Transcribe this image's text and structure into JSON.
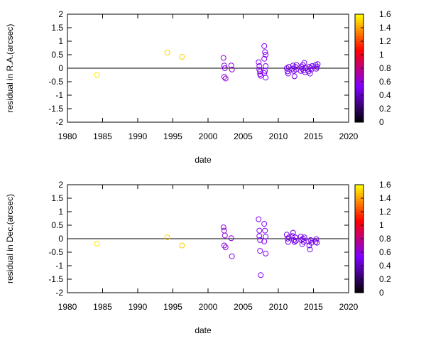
{
  "colorbar": {
    "ticks": [
      "1.6",
      "1.4",
      "1.2",
      "1",
      "0.8",
      "0.6",
      "0.4",
      "0.2",
      "0"
    ],
    "range": [
      0,
      1.6
    ]
  },
  "chart_data": [
    {
      "type": "scatter",
      "xlabel": "date",
      "ylabel": "residual in R.A.(arcsec)",
      "xlim": [
        1980,
        2020
      ],
      "ylim": [
        -2,
        2
      ],
      "xticks": [
        "1980",
        "1985",
        "1990",
        "1995",
        "2000",
        "2005",
        "2010",
        "2015",
        "2020"
      ],
      "yticks": [
        "2",
        "1.5",
        "1",
        "0.5",
        "0",
        "-0.5",
        "-1",
        "-1.5",
        "-2"
      ],
      "zero_line": true,
      "marker": "open-circle",
      "color_scale": [
        "#000000",
        "#7f00ff",
        "#ff0000",
        "#ffff00"
      ],
      "points": [
        {
          "x": 1984.2,
          "y": -0.25,
          "c": 1.55
        },
        {
          "x": 1994.2,
          "y": 0.58,
          "c": 1.5
        },
        {
          "x": 1996.3,
          "y": 0.42,
          "c": 1.5
        },
        {
          "x": 2002.2,
          "y": 0.38,
          "c": 0.6
        },
        {
          "x": 2002.3,
          "y": 0.1,
          "c": 0.6
        },
        {
          "x": 2002.4,
          "y": 0.0,
          "c": 0.6
        },
        {
          "x": 2002.3,
          "y": -0.32,
          "c": 0.6
        },
        {
          "x": 2002.5,
          "y": -0.38,
          "c": 0.6
        },
        {
          "x": 2003.3,
          "y": 0.1,
          "c": 0.6
        },
        {
          "x": 2003.4,
          "y": -0.05,
          "c": 0.6
        },
        {
          "x": 2007.2,
          "y": 0.22,
          "c": 0.55
        },
        {
          "x": 2007.3,
          "y": 0.08,
          "c": 0.55
        },
        {
          "x": 2007.3,
          "y": -0.05,
          "c": 0.55
        },
        {
          "x": 2007.4,
          "y": -0.12,
          "c": 0.55
        },
        {
          "x": 2007.4,
          "y": -0.22,
          "c": 0.55
        },
        {
          "x": 2007.5,
          "y": -0.28,
          "c": 0.55
        },
        {
          "x": 2008.0,
          "y": 0.82,
          "c": 0.55
        },
        {
          "x": 2008.1,
          "y": 0.6,
          "c": 0.55
        },
        {
          "x": 2008.2,
          "y": 0.5,
          "c": 0.55
        },
        {
          "x": 2008.0,
          "y": 0.35,
          "c": 0.55
        },
        {
          "x": 2008.2,
          "y": 0.08,
          "c": 0.55
        },
        {
          "x": 2008.1,
          "y": -0.1,
          "c": 0.55
        },
        {
          "x": 2008.0,
          "y": -0.18,
          "c": 0.55
        },
        {
          "x": 2008.2,
          "y": -0.35,
          "c": 0.55
        },
        {
          "x": 2011.2,
          "y": 0.0,
          "c": 0.5
        },
        {
          "x": 2011.3,
          "y": -0.12,
          "c": 0.5
        },
        {
          "x": 2011.4,
          "y": -0.2,
          "c": 0.5
        },
        {
          "x": 2011.5,
          "y": 0.05,
          "c": 0.5
        },
        {
          "x": 2012.0,
          "y": -0.02,
          "c": 0.5
        },
        {
          "x": 2012.1,
          "y": 0.1,
          "c": 0.5
        },
        {
          "x": 2012.2,
          "y": -0.1,
          "c": 0.5
        },
        {
          "x": 2012.3,
          "y": -0.3,
          "c": 0.5
        },
        {
          "x": 2012.4,
          "y": 0.05,
          "c": 0.5
        },
        {
          "x": 2012.5,
          "y": -0.05,
          "c": 0.5
        },
        {
          "x": 2012.6,
          "y": 0.12,
          "c": 0.5
        },
        {
          "x": 2013.2,
          "y": -0.1,
          "c": 0.5
        },
        {
          "x": 2013.3,
          "y": 0.05,
          "c": 0.5
        },
        {
          "x": 2013.4,
          "y": -0.02,
          "c": 0.5
        },
        {
          "x": 2013.5,
          "y": 0.12,
          "c": 0.5
        },
        {
          "x": 2013.6,
          "y": -0.08,
          "c": 0.5
        },
        {
          "x": 2013.7,
          "y": 0.2,
          "c": 0.5
        },
        {
          "x": 2013.8,
          "y": -0.15,
          "c": 0.5
        },
        {
          "x": 2013.9,
          "y": 0.0,
          "c": 0.5
        },
        {
          "x": 2014.3,
          "y": -0.12,
          "c": 0.5
        },
        {
          "x": 2014.4,
          "y": 0.05,
          "c": 0.5
        },
        {
          "x": 2014.5,
          "y": -0.2,
          "c": 0.5
        },
        {
          "x": 2014.6,
          "y": 0.0,
          "c": 0.5
        },
        {
          "x": 2014.7,
          "y": -0.05,
          "c": 0.5
        },
        {
          "x": 2014.8,
          "y": 0.08,
          "c": 0.5
        },
        {
          "x": 2015.3,
          "y": 0.12,
          "c": 0.5
        },
        {
          "x": 2015.4,
          "y": -0.02,
          "c": 0.5
        },
        {
          "x": 2015.5,
          "y": 0.05,
          "c": 0.5
        },
        {
          "x": 2015.6,
          "y": 0.15,
          "c": 0.5
        }
      ]
    },
    {
      "type": "scatter",
      "xlabel": "date",
      "ylabel": "residual in Dec.(arcsec)",
      "xlim": [
        1980,
        2020
      ],
      "ylim": [
        -2,
        2
      ],
      "xticks": [
        "1980",
        "1985",
        "1990",
        "1995",
        "2000",
        "2005",
        "2010",
        "2015",
        "2020"
      ],
      "yticks": [
        "2",
        "1.5",
        "1",
        "0.5",
        "0",
        "-0.5",
        "-1",
        "-1.5",
        "-2"
      ],
      "zero_line": true,
      "marker": "open-circle",
      "color_scale": [
        "#000000",
        "#7f00ff",
        "#ff0000",
        "#ffff00"
      ],
      "points": [
        {
          "x": 1984.2,
          "y": -0.18,
          "c": 1.55
        },
        {
          "x": 1994.2,
          "y": 0.05,
          "c": 1.5
        },
        {
          "x": 1996.3,
          "y": -0.25,
          "c": 1.5
        },
        {
          "x": 2002.2,
          "y": 0.42,
          "c": 0.6
        },
        {
          "x": 2002.3,
          "y": 0.3,
          "c": 0.6
        },
        {
          "x": 2002.4,
          "y": 0.12,
          "c": 0.6
        },
        {
          "x": 2002.3,
          "y": -0.25,
          "c": 0.6
        },
        {
          "x": 2002.5,
          "y": -0.32,
          "c": 0.6
        },
        {
          "x": 2003.3,
          "y": 0.02,
          "c": 0.6
        },
        {
          "x": 2003.4,
          "y": -0.65,
          "c": 0.6
        },
        {
          "x": 2007.2,
          "y": 0.72,
          "c": 0.55
        },
        {
          "x": 2007.3,
          "y": 0.3,
          "c": 0.55
        },
        {
          "x": 2007.3,
          "y": 0.1,
          "c": 0.55
        },
        {
          "x": 2007.4,
          "y": -0.05,
          "c": 0.55
        },
        {
          "x": 2007.4,
          "y": -0.45,
          "c": 0.55
        },
        {
          "x": 2007.5,
          "y": -1.35,
          "c": 0.55
        },
        {
          "x": 2008.0,
          "y": 0.55,
          "c": 0.55
        },
        {
          "x": 2008.1,
          "y": 0.3,
          "c": 0.55
        },
        {
          "x": 2008.2,
          "y": 0.08,
          "c": 0.55
        },
        {
          "x": 2008.0,
          "y": -0.1,
          "c": 0.55
        },
        {
          "x": 2008.2,
          "y": -0.55,
          "c": 0.55
        },
        {
          "x": 2011.2,
          "y": 0.15,
          "c": 0.5
        },
        {
          "x": 2011.3,
          "y": 0.0,
          "c": 0.5
        },
        {
          "x": 2011.4,
          "y": -0.12,
          "c": 0.5
        },
        {
          "x": 2011.5,
          "y": 0.05,
          "c": 0.5
        },
        {
          "x": 2012.0,
          "y": 0.1,
          "c": 0.5
        },
        {
          "x": 2012.1,
          "y": 0.22,
          "c": 0.5
        },
        {
          "x": 2012.2,
          "y": -0.05,
          "c": 0.5
        },
        {
          "x": 2012.3,
          "y": -0.12,
          "c": 0.5
        },
        {
          "x": 2012.4,
          "y": 0.05,
          "c": 0.5
        },
        {
          "x": 2012.5,
          "y": -0.08,
          "c": 0.5
        },
        {
          "x": 2013.2,
          "y": 0.08,
          "c": 0.5
        },
        {
          "x": 2013.3,
          "y": -0.05,
          "c": 0.5
        },
        {
          "x": 2013.4,
          "y": -0.2,
          "c": 0.5
        },
        {
          "x": 2013.5,
          "y": 0.0,
          "c": 0.5
        },
        {
          "x": 2013.6,
          "y": -0.12,
          "c": 0.5
        },
        {
          "x": 2013.7,
          "y": 0.05,
          "c": 0.5
        },
        {
          "x": 2014.3,
          "y": -0.1,
          "c": 0.5
        },
        {
          "x": 2014.4,
          "y": -0.25,
          "c": 0.5
        },
        {
          "x": 2014.5,
          "y": -0.4,
          "c": 0.5
        },
        {
          "x": 2014.6,
          "y": -0.05,
          "c": 0.5
        },
        {
          "x": 2014.7,
          "y": -0.15,
          "c": 0.5
        },
        {
          "x": 2015.3,
          "y": -0.12,
          "c": 0.5
        },
        {
          "x": 2015.4,
          "y": -0.02,
          "c": 0.5
        },
        {
          "x": 2015.5,
          "y": -0.15,
          "c": 0.5
        }
      ]
    }
  ]
}
